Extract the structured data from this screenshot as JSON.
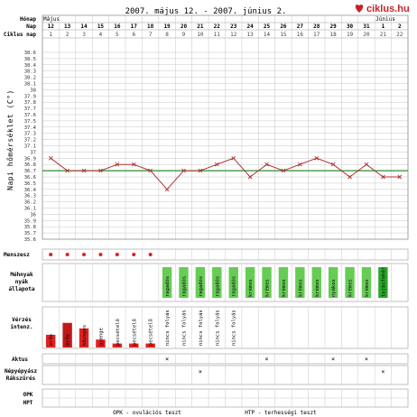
{
  "title": "2007. május 12. - 2007. június 2.",
  "logo": {
    "text": "ciklus.hu",
    "color": "#c8202a",
    "icon": "heart-icon"
  },
  "row_labels": {
    "month": "Hónap",
    "day": "Nap",
    "cycle_day": "Ciklus nap",
    "y_axis": "Napi hőmérséklet (C°)",
    "menses": "Menszesz",
    "mucus": [
      "Méhnyak",
      "nyák",
      "állapota"
    ],
    "bleeding": [
      "Vérzés",
      "intenz."
    ],
    "intercourse": "Aktus",
    "cervix": [
      "Népyépyász",
      "Rákszűrés"
    ],
    "opk": "OPK",
    "hpt": "HPT"
  },
  "months": [
    {
      "label": "Május",
      "start_index": 0
    },
    {
      "label": "Június",
      "start_index": 20
    }
  ],
  "days": [
    "12",
    "13",
    "14",
    "15",
    "16",
    "17",
    "18",
    "19",
    "20",
    "21",
    "22",
    "23",
    "24",
    "25",
    "26",
    "27",
    "28",
    "29",
    "30",
    "31",
    "1",
    "2"
  ],
  "cycle_days": [
    "1",
    "2",
    "3",
    "4",
    "5",
    "6",
    "7",
    "8",
    "9",
    "10",
    "11",
    "12",
    "13",
    "14",
    "15",
    "16",
    "17",
    "18",
    "19",
    "20",
    "21",
    "22"
  ],
  "colors": {
    "line": "#b03030",
    "coverline": "#2e8b2e",
    "grid": "#b8b8b8",
    "dot": "#e02020",
    "bleed": "#e02020",
    "bleed_strong": "#c01818",
    "mucus_sticky": "#66cc55",
    "mucus_creamy": "#66cc55",
    "mucus_egg": "#2aa82a"
  },
  "chart_data": {
    "type": "line",
    "ylabel": "Napi hőmérséklet (C°)",
    "ylim": [
      35.6,
      38.6
    ],
    "y_ticks": [
      "38.6",
      "38.5",
      "38.4",
      "38.3",
      "38.2",
      "38.1",
      "38",
      "37.9",
      "37.8",
      "37.7",
      "37.6",
      "37.5",
      "37.4",
      "37.3",
      "37.2",
      "37.1",
      "37",
      "36.9",
      "36.8",
      "36.7",
      "36.6",
      "36.5",
      "36.4",
      "36.3",
      "36.2",
      "36.1",
      "36",
      "35.9",
      "35.8",
      "35.7",
      "35.6"
    ],
    "coverline": 36.7,
    "temps": [
      36.9,
      36.7,
      36.7,
      36.7,
      36.8,
      36.8,
      36.7,
      36.4,
      36.7,
      36.7,
      36.8,
      36.9,
      36.6,
      36.8,
      36.7,
      36.8,
      36.9,
      36.8,
      36.6,
      36.8,
      36.6,
      36.6
    ]
  },
  "menses": [
    true,
    true,
    true,
    true,
    true,
    true,
    true,
    false,
    false,
    false,
    false,
    false,
    false,
    false,
    false,
    false,
    false,
    false,
    false,
    false,
    false,
    false
  ],
  "mucus": [
    "",
    "",
    "",
    "",
    "",
    "",
    "",
    "ragadós",
    "ragadós",
    "ragadós",
    "ragadós",
    "ragadós",
    "krémes",
    "krémes",
    "krémes",
    "krémes",
    "krémes",
    "nyákos",
    "krémes",
    "krémes",
    "tojásfehér",
    ""
  ],
  "mucus_kind": [
    "",
    "",
    "",
    "",
    "",
    "",
    "",
    "sticky",
    "sticky",
    "sticky",
    "sticky",
    "sticky",
    "creamy",
    "creamy",
    "creamy",
    "creamy",
    "creamy",
    "creamy",
    "creamy",
    "creamy",
    "egg",
    ""
  ],
  "bleeding": [
    {
      "label": "erős",
      "level": 0.32
    },
    {
      "label": "erős",
      "level": 0.62
    },
    {
      "label": "közepes",
      "level": 0.48
    },
    {
      "label": "gyenge",
      "level": 0.2
    },
    {
      "label": "pecsételő",
      "level": 0.1
    },
    {
      "label": "pecsételő",
      "level": 0.1
    },
    {
      "label": "pecsételő",
      "level": 0.1
    },
    {
      "label": "nincs folyás",
      "level": 0
    },
    {
      "label": "nincs folyás",
      "level": 0
    },
    {
      "label": "nincs folyás",
      "level": 0
    },
    {
      "label": "nincs folyás",
      "level": 0
    },
    {
      "label": "nincs folyás",
      "level": 0
    },
    {
      "label": "",
      "level": 0
    },
    {
      "label": "",
      "level": 0
    },
    {
      "label": "",
      "level": 0
    },
    {
      "label": "",
      "level": 0
    },
    {
      "label": "",
      "level": 0
    },
    {
      "label": "",
      "level": 0
    },
    {
      "label": "",
      "level": 0
    },
    {
      "label": "",
      "level": 0
    },
    {
      "label": "",
      "level": 0
    },
    {
      "label": "",
      "level": 0
    }
  ],
  "intercourse": [
    false,
    false,
    false,
    false,
    false,
    false,
    false,
    true,
    false,
    false,
    false,
    false,
    false,
    true,
    false,
    false,
    false,
    true,
    false,
    true,
    false,
    false
  ],
  "cervix": [
    false,
    false,
    false,
    false,
    false,
    false,
    false,
    false,
    false,
    true,
    false,
    false,
    false,
    false,
    false,
    false,
    false,
    false,
    false,
    false,
    true,
    false
  ],
  "marks": {
    "x": "×",
    "dot": "●"
  },
  "legend": {
    "opk": "OPK - ovulációs teszt",
    "hpt": "HTP - terhességi teszt"
  }
}
